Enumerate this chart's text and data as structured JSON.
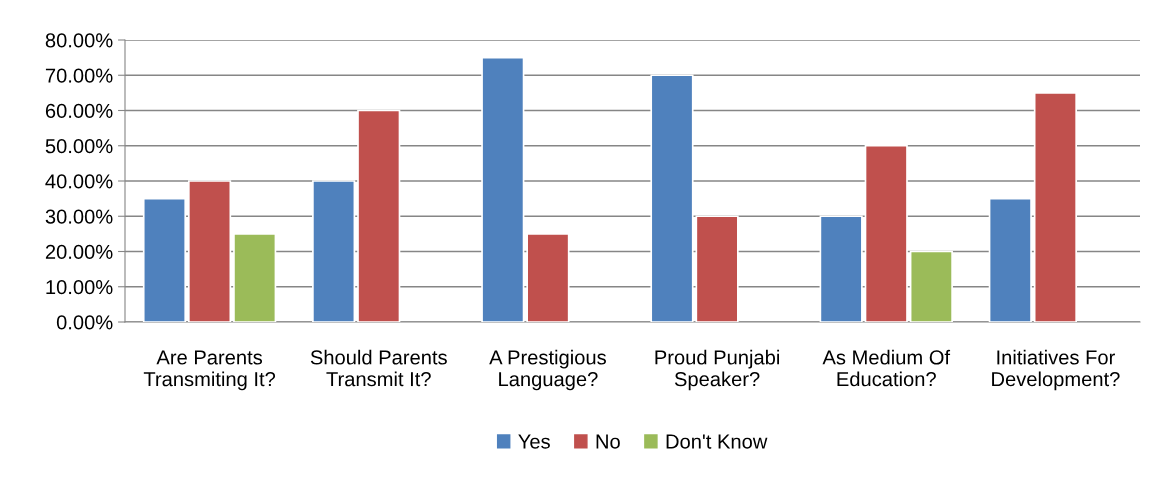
{
  "chart_data": {
    "type": "bar",
    "categories": [
      "Are Parents\nTransmiting It?",
      "Should Parents\nTransmit It?",
      "A Prestigious\nLanguage?",
      "Proud Punjabi\nSpeaker?",
      "As Medium Of\nEducation?",
      "Initiatives For\nDevelopment?"
    ],
    "series": [
      {
        "name": "Yes",
        "color": "#4f81bd",
        "values": [
          35,
          40,
          75,
          70,
          30,
          35
        ]
      },
      {
        "name": "No",
        "color": "#c0504d",
        "values": [
          40,
          60,
          25,
          30,
          50,
          65
        ]
      },
      {
        "name": "Don't Know",
        "color": "#9bbb59",
        "values": [
          25,
          null,
          null,
          null,
          20,
          null
        ]
      }
    ],
    "ylim": [
      0,
      80
    ],
    "yticks": [
      {
        "value": 0,
        "label": "0.00%"
      },
      {
        "value": 10,
        "label": "10.00%"
      },
      {
        "value": 20,
        "label": "20.00%"
      },
      {
        "value": 30,
        "label": "30.00%"
      },
      {
        "value": 40,
        "label": "40.00%"
      },
      {
        "value": 50,
        "label": "50.00%"
      },
      {
        "value": 60,
        "label": "60.00%"
      },
      {
        "value": 70,
        "label": "70.00%"
      },
      {
        "value": 80,
        "label": "80.00%"
      }
    ],
    "grid": "y",
    "legend": "bottom"
  }
}
